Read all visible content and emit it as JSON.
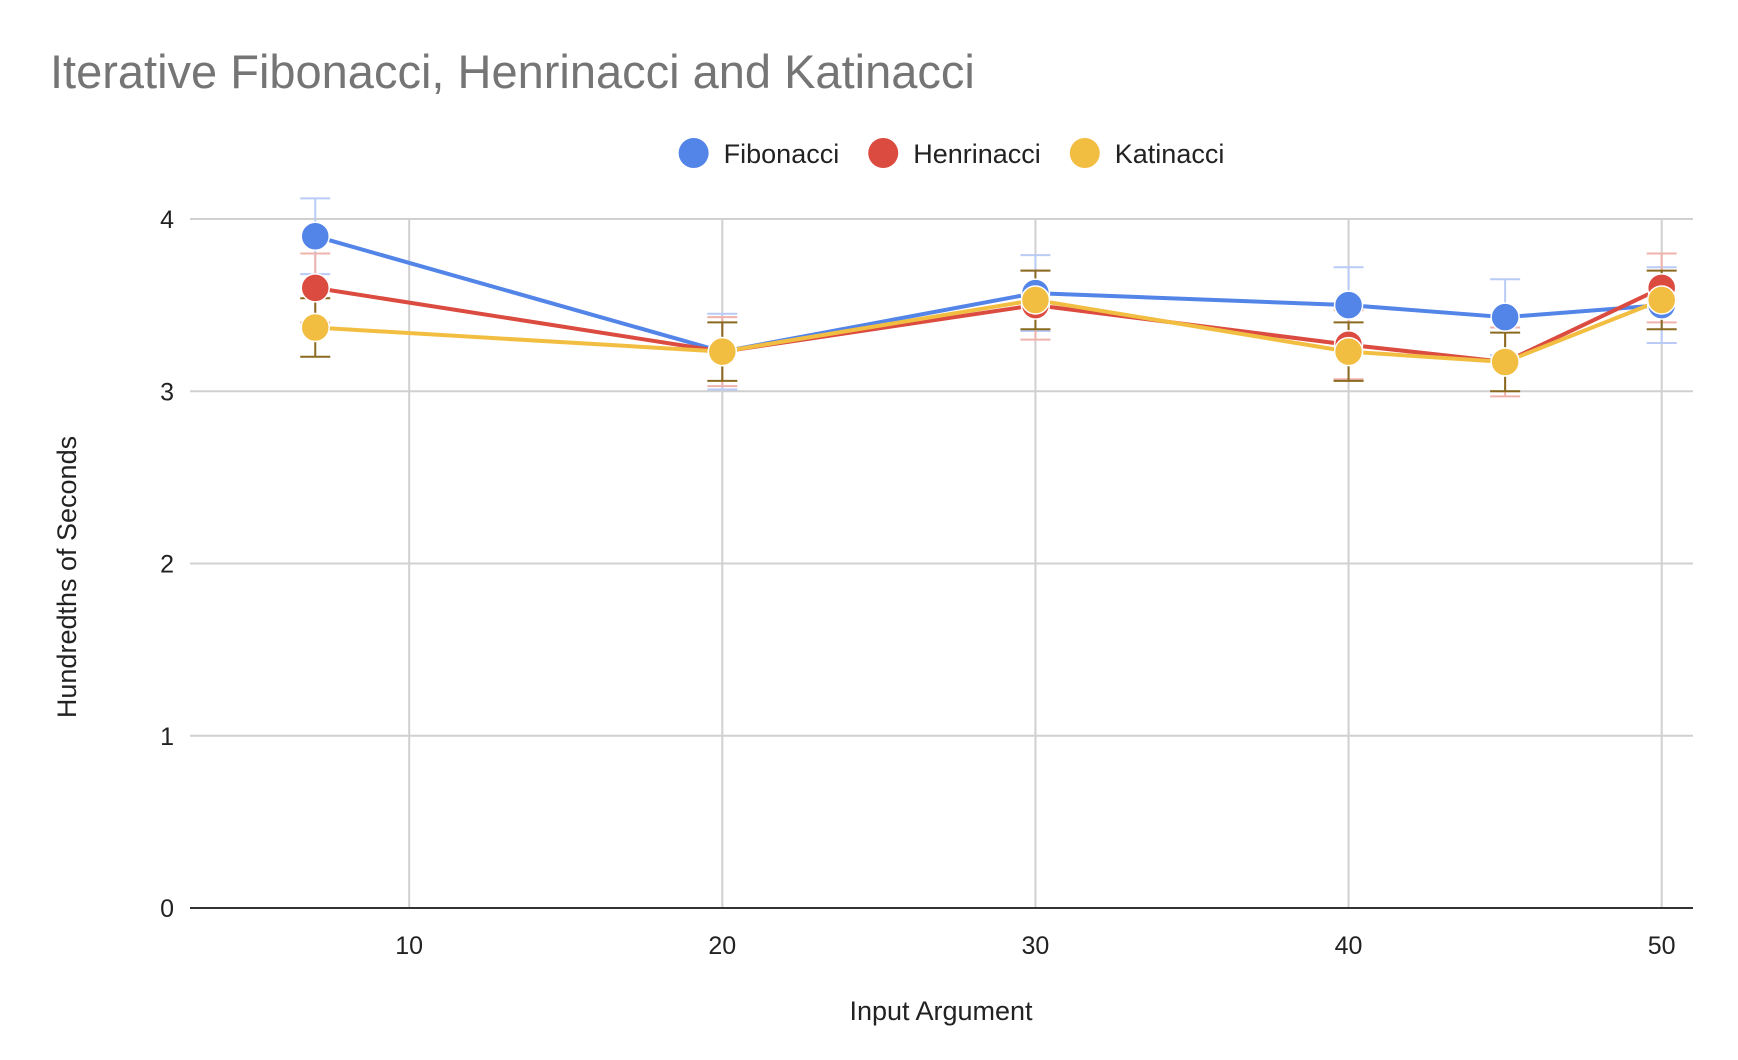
{
  "chart_data": {
    "type": "line",
    "title": "Iterative Fibonacci, Henrinacci and Katinacci",
    "xlabel": "Input Argument",
    "ylabel": "Hundredths of Seconds",
    "x": [
      7,
      20,
      30,
      40,
      45,
      50
    ],
    "xlim": [
      3,
      51
    ],
    "ylim": [
      0,
      4
    ],
    "x_ticks": [
      10,
      20,
      30,
      40,
      50
    ],
    "y_ticks": [
      0,
      1,
      2,
      3,
      4
    ],
    "grid": true,
    "legend_position": "top",
    "error_bars": true,
    "series": [
      {
        "name": "Fibonacci",
        "color": "#5384E8",
        "values": [
          3.9,
          3.23,
          3.57,
          3.5,
          3.43,
          3.5
        ],
        "error": [
          0.22,
          0.22,
          0.22,
          0.22,
          0.22,
          0.22
        ]
      },
      {
        "name": "Henrinacci",
        "color": "#DB4B3F",
        "values": [
          3.6,
          3.23,
          3.5,
          3.27,
          3.17,
          3.6
        ],
        "error": [
          0.2,
          0.2,
          0.2,
          0.2,
          0.2,
          0.2
        ]
      },
      {
        "name": "Katinacci",
        "color": "#F2BE42",
        "values": [
          3.37,
          3.23,
          3.53,
          3.23,
          3.17,
          3.53
        ],
        "error": [
          0.17,
          0.17,
          0.17,
          0.17,
          0.17,
          0.17
        ]
      }
    ]
  }
}
